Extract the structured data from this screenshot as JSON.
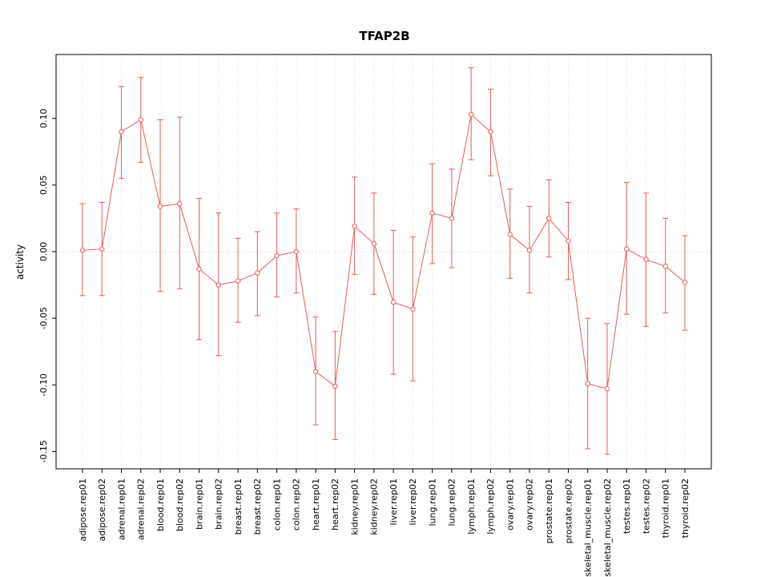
{
  "chart_data": {
    "type": "line",
    "title": "TFAP2B",
    "xlabel": "",
    "ylabel": "activity",
    "ylim": [
      -0.163,
      0.148
    ],
    "yticks": [
      -0.15,
      -0.1,
      -0.05,
      0.0,
      0.05,
      0.1
    ],
    "grid": "vertical-dotted",
    "zero_line": true,
    "legend_position": "none",
    "categories": [
      "adipose.rep01",
      "adipose.rep02",
      "adrenal.rep01",
      "adrenal.rep02",
      "blood.rep01",
      "blood.rep02",
      "brain.rep01",
      "brain.rep02",
      "breast.rep01",
      "breast.rep02",
      "colon.rep01",
      "colon.rep02",
      "heart.rep01",
      "heart.rep02",
      "kidney.rep01",
      "kidney.rep02",
      "liver.rep01",
      "liver.rep02",
      "lung.rep01",
      "lung.rep02",
      "lymph.rep01",
      "lymph.rep02",
      "ovary.rep01",
      "ovary.rep02",
      "prostate.rep01",
      "prostate.rep02",
      "skeletal_muscle.rep01",
      "skeletal_muscle.rep02",
      "testes.rep01",
      "testes.rep02",
      "thyroid.rep01",
      "thyroid.rep02"
    ],
    "series": [
      {
        "name": "activity",
        "values": [
          0.001,
          0.002,
          0.09,
          0.099,
          0.034,
          0.036,
          -0.013,
          -0.025,
          -0.022,
          -0.016,
          -0.003,
          0.0,
          -0.09,
          -0.101,
          0.019,
          0.006,
          -0.038,
          -0.043,
          0.029,
          0.025,
          0.103,
          0.09,
          0.013,
          0.001,
          0.025,
          0.008,
          -0.099,
          -0.103,
          0.002,
          -0.006,
          -0.011,
          -0.023
        ],
        "upper": [
          0.036,
          0.037,
          0.124,
          0.131,
          0.099,
          0.101,
          0.04,
          0.029,
          0.01,
          0.015,
          0.029,
          0.032,
          -0.049,
          -0.06,
          0.056,
          0.044,
          0.016,
          0.011,
          0.066,
          0.062,
          0.138,
          0.122,
          0.047,
          0.034,
          0.054,
          0.037,
          -0.05,
          -0.054,
          0.052,
          0.044,
          0.025,
          0.012
        ],
        "lower": [
          -0.033,
          -0.033,
          0.055,
          0.067,
          -0.03,
          -0.028,
          -0.066,
          -0.078,
          -0.053,
          -0.048,
          -0.034,
          -0.031,
          -0.13,
          -0.141,
          -0.017,
          -0.032,
          -0.092,
          -0.097,
          -0.009,
          -0.012,
          0.069,
          0.057,
          -0.02,
          -0.031,
          -0.004,
          -0.021,
          -0.148,
          -0.152,
          -0.047,
          -0.056,
          -0.046,
          -0.059
        ]
      }
    ],
    "colors": {
      "series": "#e85b5b",
      "grid": "#d8d8d8",
      "zero_line": "#f0b9b9",
      "axis": "#000000",
      "background": "#ffffff"
    }
  }
}
